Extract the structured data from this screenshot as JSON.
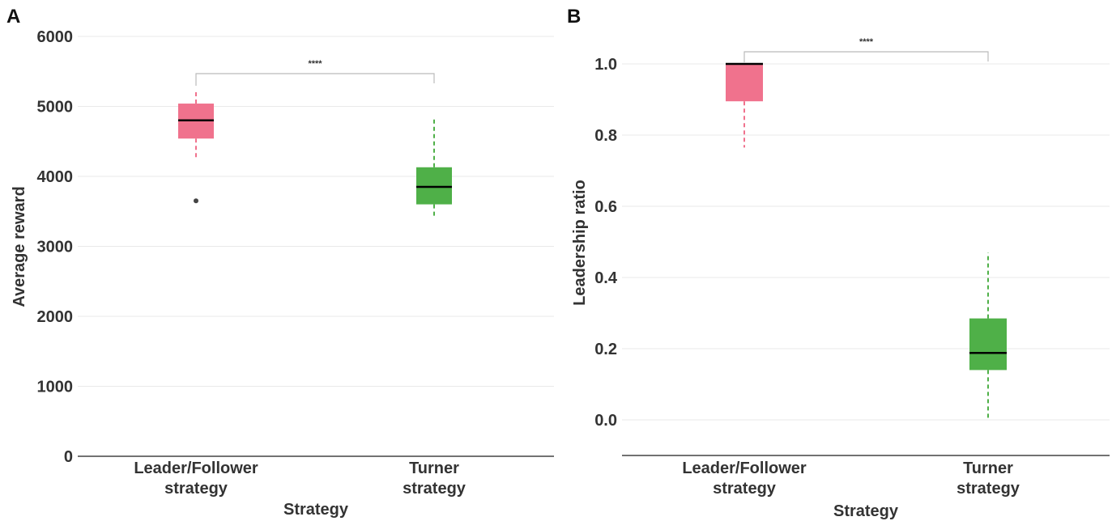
{
  "chart_data": [
    {
      "type": "box",
      "panel": "A",
      "xlabel": "Strategy",
      "ylabel": "Average reward",
      "ylim": [
        0,
        6000
      ],
      "yticks": [
        0,
        1000,
        2000,
        3000,
        4000,
        5000,
        6000
      ],
      "grid": true,
      "categories": [
        [
          "Leader/Follower",
          "strategy"
        ],
        [
          "Turner",
          "strategy"
        ]
      ],
      "boxes": [
        {
          "category": "Leader/Follower strategy",
          "color": "#f0728d",
          "whisker_low": 4250,
          "q1": 4540,
          "median": 4800,
          "q3": 5040,
          "whisker_high": 5220,
          "outliers": [
            3650
          ]
        },
        {
          "category": "Turner strategy",
          "color": "#4fb048",
          "whisker_low": 3400,
          "q1": 3600,
          "median": 3850,
          "q3": 4130,
          "whisker_high": 4830,
          "outliers": []
        }
      ],
      "significance": {
        "label": "****"
      }
    },
    {
      "type": "box",
      "panel": "B",
      "xlabel": "Strategy",
      "ylabel": "Leadership ratio",
      "ylim": [
        -0.1,
        1.1
      ],
      "yticks": [
        "0.0",
        "0.2",
        "0.4",
        "0.6",
        "0.8",
        "1.0"
      ],
      "grid": true,
      "categories": [
        [
          "Leader/Follower",
          "strategy"
        ],
        [
          "Turner",
          "strategy"
        ]
      ],
      "boxes": [
        {
          "category": "Leader/Follower strategy",
          "color": "#f0728d",
          "whisker_low": 0.765,
          "q1": 0.895,
          "median": 1.0,
          "q3": 1.0,
          "whisker_high": 1.0,
          "outliers": []
        },
        {
          "category": "Turner strategy",
          "color": "#4fb048",
          "whisker_low": 0.0,
          "q1": 0.14,
          "median": 0.188,
          "q3": 0.285,
          "whisker_high": 0.47,
          "outliers": []
        }
      ],
      "significance": {
        "label": "****"
      }
    }
  ]
}
